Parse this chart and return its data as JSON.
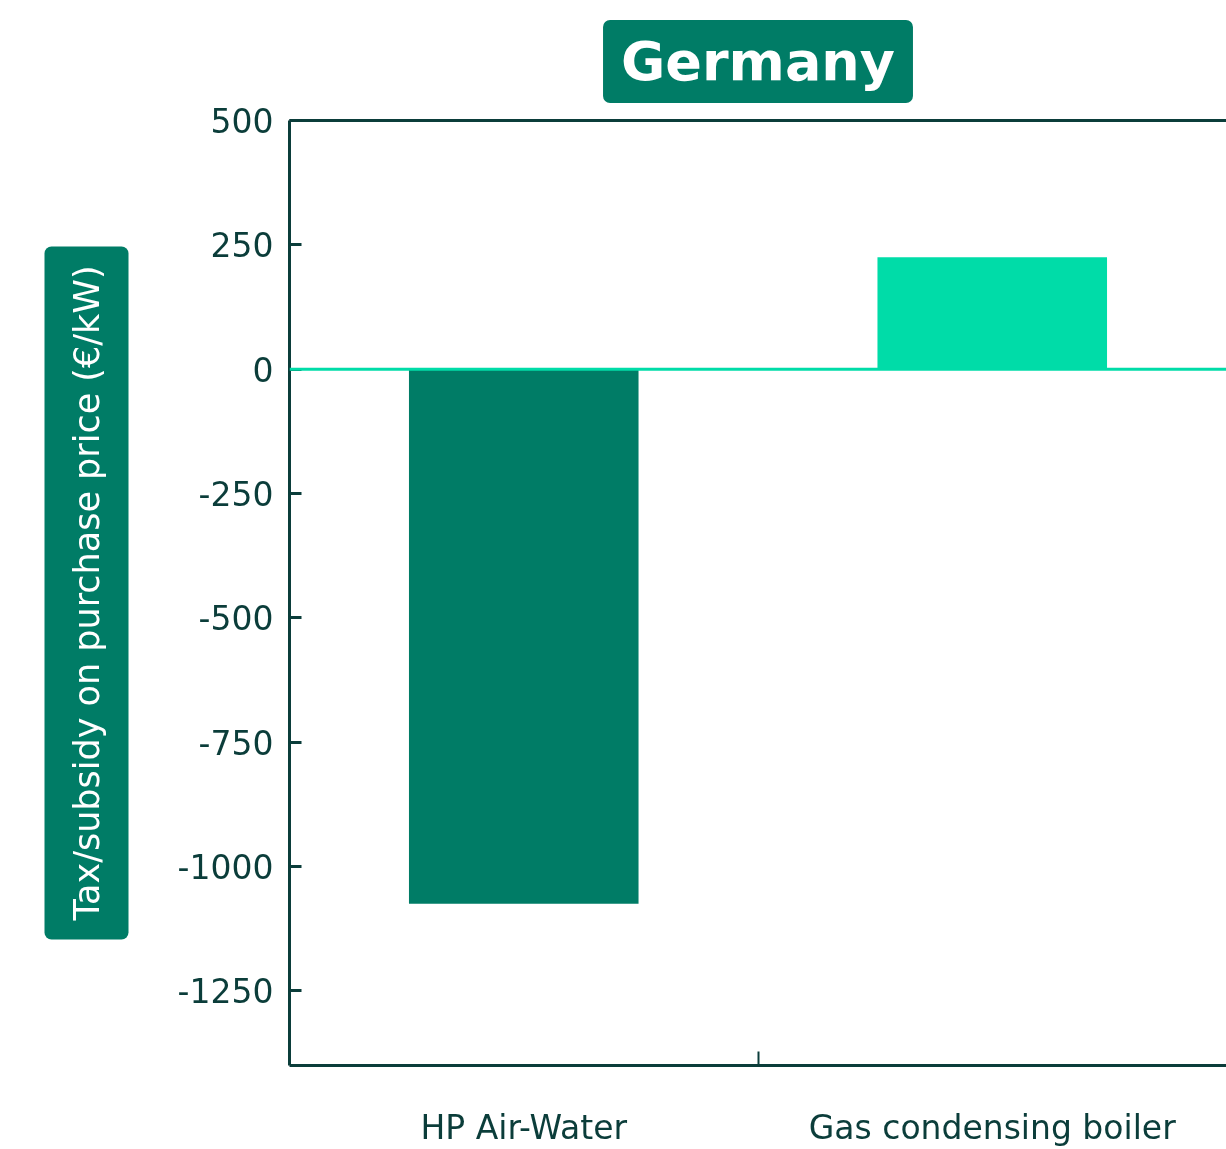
{
  "chart_data": {
    "type": "bar",
    "title": "Germany",
    "ylabel": "Tax/subsidy on purchase price (€/kW)",
    "categories": [
      "HP Air-Water",
      "Gas condensing boiler"
    ],
    "values": [
      -1075,
      225
    ],
    "colors": [
      "#007c66",
      "#00dca8"
    ],
    "ylim": [
      -1400,
      500
    ],
    "yticks": [
      500,
      250,
      0,
      -250,
      -500,
      -750,
      -1000,
      -1250
    ],
    "ref_lines": [
      {
        "axis": "y",
        "value": 0,
        "color": "#00dca8"
      }
    ],
    "grid": false
  }
}
